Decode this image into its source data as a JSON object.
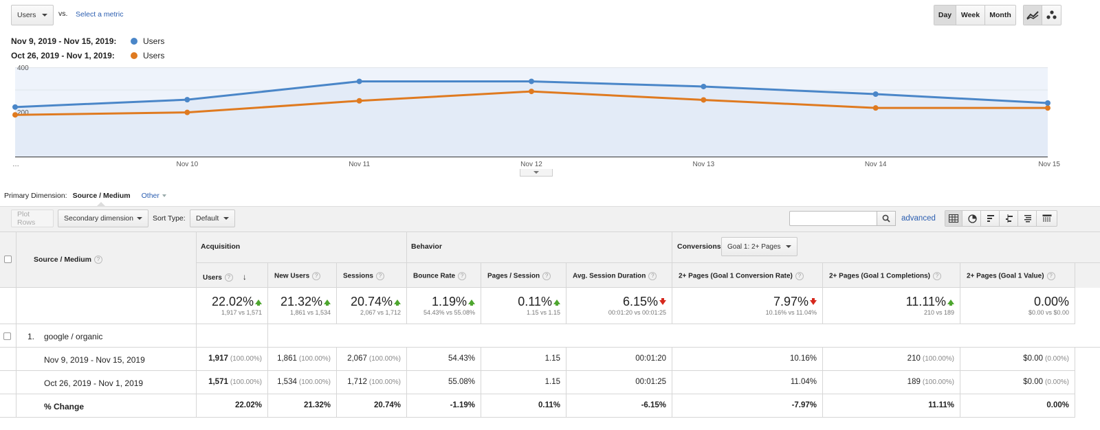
{
  "toolbar": {
    "metric_select": "Users",
    "vs_label": "vs.",
    "select_metric_link": "Select a metric",
    "granularity": [
      "Day",
      "Week",
      "Month"
    ],
    "active_granularity": "Day"
  },
  "legend": [
    {
      "range": "Nov 9, 2019 - Nov 15, 2019:",
      "metric": "Users",
      "color": "#4a86c8"
    },
    {
      "range": "Oct 26, 2019 - Nov 1, 2019:",
      "metric": "Users",
      "color": "#df7a20"
    }
  ],
  "chart_data": {
    "type": "line",
    "x": [
      "…",
      "Nov 10",
      "Nov 11",
      "Nov 12",
      "Nov 13",
      "Nov 14",
      "Nov 15"
    ],
    "series": [
      {
        "name": "Users",
        "period": "Nov 9, 2019 - Nov 15, 2019",
        "color": "#4a86c8",
        "values": [
          222,
          255,
          337,
          337,
          314,
          280,
          240
        ]
      },
      {
        "name": "Users",
        "period": "Oct 26, 2019 - Nov 1, 2019",
        "color": "#df7a20",
        "values": [
          187,
          198,
          250,
          292,
          254,
          218,
          218
        ]
      }
    ],
    "yticks": [
      "400",
      "200"
    ],
    "ylim": [
      0,
      400
    ],
    "grid": true
  },
  "dimension_bar": {
    "label": "Primary Dimension:",
    "active": "Source / Medium",
    "other": "Other"
  },
  "controls": {
    "plot_rows": "Plot Rows",
    "secondary_dimension": "Secondary dimension",
    "sort_type_label": "Sort Type:",
    "sort_type_value": "Default",
    "search_placeholder": "",
    "advanced": "advanced"
  },
  "table": {
    "dimension_header": "Source / Medium",
    "groups": {
      "acquisition": "Acquisition",
      "behavior": "Behavior",
      "conversions": "Conversions",
      "goal_select": "Goal 1: 2+ Pages"
    },
    "columns": [
      "Users",
      "New Users",
      "Sessions",
      "Bounce Rate",
      "Pages / Session",
      "Avg. Session Duration",
      "2+ Pages (Goal 1 Conversion Rate)",
      "2+ Pages (Goal 1 Completions)",
      "2+ Pages (Goal 1 Value)"
    ],
    "summary": [
      {
        "value": "22.02%",
        "dir": "up",
        "sub": "1,917 vs 1,571"
      },
      {
        "value": "21.32%",
        "dir": "up",
        "sub": "1,861 vs 1,534"
      },
      {
        "value": "20.74%",
        "dir": "up",
        "sub": "2,067 vs 1,712"
      },
      {
        "value": "1.19%",
        "dir": "up",
        "sub": "54.43% vs 55.08%"
      },
      {
        "value": "0.11%",
        "dir": "up",
        "sub": "1.15 vs 1.15"
      },
      {
        "value": "6.15%",
        "dir": "down",
        "sub": "00:01:20 vs 00:01:25"
      },
      {
        "value": "7.97%",
        "dir": "down",
        "sub": "10.16% vs 11.04%"
      },
      {
        "value": "11.11%",
        "dir": "up",
        "sub": "210 vs 189"
      },
      {
        "value": "0.00%",
        "dir": "none",
        "sub": "$0.00 vs $0.00"
      }
    ],
    "row": {
      "index": "1.",
      "label": "google / organic"
    },
    "periods": [
      {
        "label": "Nov 9, 2019 - Nov 15, 2019",
        "cells": [
          {
            "v": "1,917",
            "p": "(100.00%)",
            "bold": true
          },
          {
            "v": "1,861",
            "p": "(100.00%)"
          },
          {
            "v": "2,067",
            "p": "(100.00%)"
          },
          {
            "v": "54.43%",
            "p": ""
          },
          {
            "v": "1.15",
            "p": ""
          },
          {
            "v": "00:01:20",
            "p": ""
          },
          {
            "v": "10.16%",
            "p": ""
          },
          {
            "v": "210",
            "p": "(100.00%)"
          },
          {
            "v": "$0.00",
            "p": "(0.00%)"
          }
        ]
      },
      {
        "label": "Oct 26, 2019 - Nov 1, 2019",
        "cells": [
          {
            "v": "1,571",
            "p": "(100.00%)",
            "bold": true
          },
          {
            "v": "1,534",
            "p": "(100.00%)"
          },
          {
            "v": "1,712",
            "p": "(100.00%)"
          },
          {
            "v": "55.08%",
            "p": ""
          },
          {
            "v": "1.15",
            "p": ""
          },
          {
            "v": "00:01:25",
            "p": ""
          },
          {
            "v": "11.04%",
            "p": ""
          },
          {
            "v": "189",
            "p": "(100.00%)"
          },
          {
            "v": "$0.00",
            "p": "(0.00%)"
          }
        ]
      }
    ],
    "change": {
      "label": "% Change",
      "cells": [
        "22.02%",
        "21.32%",
        "20.74%",
        "-1.19%",
        "0.11%",
        "-6.15%",
        "-7.97%",
        "11.11%",
        "0.00%"
      ]
    }
  }
}
